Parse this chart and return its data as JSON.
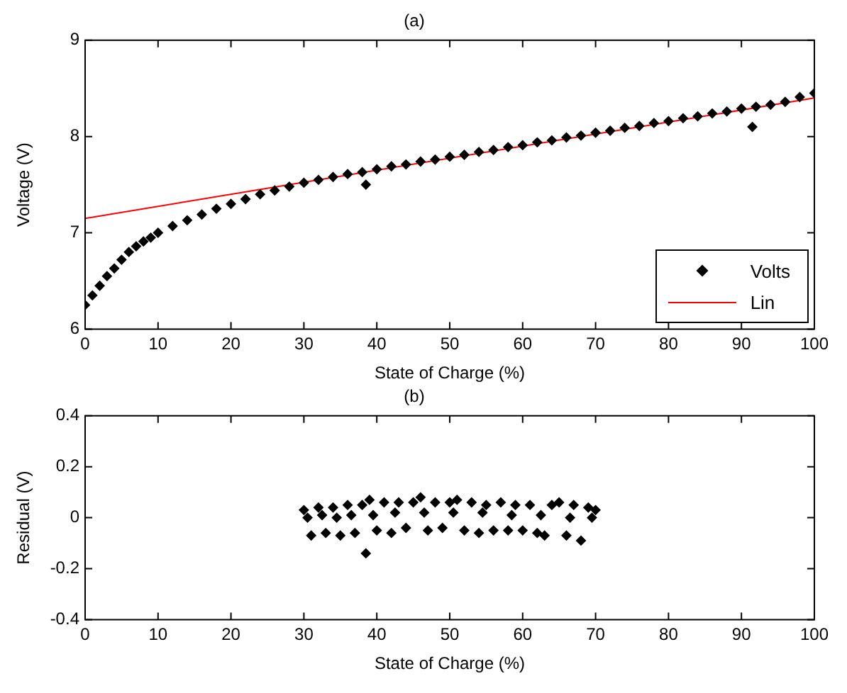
{
  "chart_data": [
    {
      "type": "scatter",
      "title": "(a)",
      "xlabel": "State of Charge (%)",
      "ylabel": "Voltage (V)",
      "xlim": [
        0,
        100
      ],
      "xticks": [
        0,
        10,
        20,
        30,
        40,
        50,
        60,
        70,
        80,
        90,
        100
      ],
      "ylim": [
        6,
        9
      ],
      "yticks": [
        6,
        7,
        8,
        9
      ],
      "grid": false,
      "legend": "bottom right",
      "series": [
        {
          "name": "Volts",
          "marker": "diamond",
          "color": "#000000",
          "x": [
            0,
            1,
            2,
            3,
            4,
            5,
            6,
            7,
            8,
            9,
            10,
            12,
            14,
            16,
            18,
            20,
            22,
            24,
            26,
            28,
            30,
            32,
            34,
            36,
            38,
            38.5,
            40,
            42,
            44,
            46,
            48,
            50,
            52,
            54,
            56,
            58,
            60,
            62,
            64,
            66,
            68,
            70,
            72,
            74,
            76,
            78,
            80,
            82,
            84,
            86,
            88,
            90,
            91.5,
            92,
            94,
            96,
            98,
            100
          ],
          "values": [
            6.25,
            6.35,
            6.45,
            6.55,
            6.63,
            6.72,
            6.8,
            6.86,
            6.91,
            6.95,
            7.0,
            7.07,
            7.13,
            7.19,
            7.25,
            7.3,
            7.35,
            7.4,
            7.44,
            7.48,
            7.52,
            7.55,
            7.58,
            7.61,
            7.63,
            7.5,
            7.66,
            7.69,
            7.71,
            7.74,
            7.76,
            7.79,
            7.81,
            7.84,
            7.86,
            7.89,
            7.91,
            7.94,
            7.96,
            7.99,
            8.01,
            8.04,
            8.06,
            8.09,
            8.11,
            8.14,
            8.16,
            8.19,
            8.21,
            8.24,
            8.26,
            8.29,
            8.1,
            8.31,
            8.33,
            8.36,
            8.41,
            8.45
          ]
        },
        {
          "name": "Lin",
          "type": "line",
          "marker": "none",
          "color": "#ff0000",
          "x": [
            0,
            100
          ],
          "values": [
            7.15,
            8.4
          ]
        }
      ]
    },
    {
      "type": "scatter",
      "title": "(b)",
      "xlabel": "State of Charge (%)",
      "ylabel": "Residual (V)",
      "xlim": [
        0,
        100
      ],
      "xticks": [
        0,
        10,
        20,
        30,
        40,
        50,
        60,
        70,
        80,
        90,
        100
      ],
      "ylim": [
        -0.4,
        0.4
      ],
      "yticks": [
        -0.4,
        -0.2,
        0,
        0.2,
        0.4
      ],
      "grid": false,
      "marker": "diamond",
      "series": [
        {
          "color": "#000000",
          "x": [
            30,
            31,
            32,
            33,
            34,
            35,
            36,
            37,
            38,
            38.5,
            39,
            40,
            41,
            42,
            43,
            44,
            45,
            46,
            47,
            48,
            49,
            50,
            51,
            52,
            53,
            54,
            55,
            56,
            57,
            58,
            59,
            60,
            61,
            62,
            63,
            64,
            65,
            66,
            67,
            68,
            69,
            70,
            30.5,
            32.5,
            34.5,
            36.5,
            39.5,
            42.5,
            46.5,
            50.5,
            54.5,
            58.5,
            62.5,
            66.5,
            69.5
          ],
          "values": [
            0.03,
            -0.07,
            0.04,
            -0.06,
            0.04,
            -0.07,
            0.05,
            -0.06,
            0.05,
            -0.14,
            0.07,
            -0.05,
            0.06,
            -0.06,
            0.06,
            -0.04,
            0.06,
            0.08,
            -0.05,
            0.06,
            -0.04,
            0.06,
            0.07,
            -0.05,
            0.06,
            -0.06,
            0.05,
            -0.05,
            0.06,
            -0.05,
            0.05,
            -0.05,
            0.05,
            -0.06,
            -0.07,
            0.05,
            0.06,
            -0.07,
            0.05,
            -0.09,
            0.04,
            0.03,
            0,
            0.01,
            0,
            0.01,
            0.01,
            0.02,
            0.02,
            0.02,
            0.02,
            0.01,
            0.01,
            0,
            0
          ]
        }
      ]
    }
  ]
}
